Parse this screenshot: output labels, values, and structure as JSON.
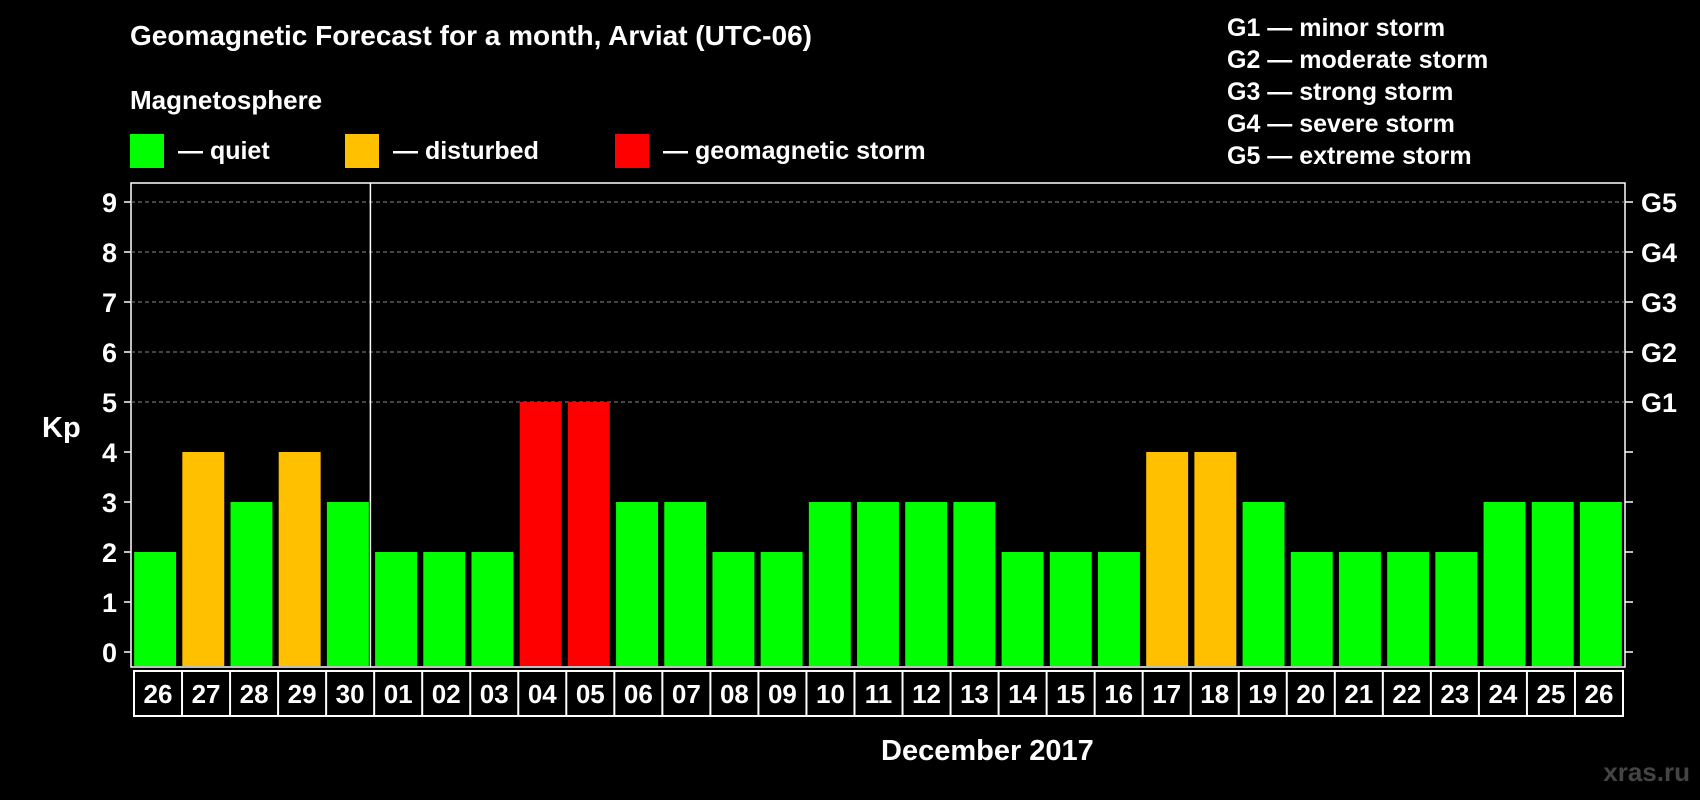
{
  "chart_data": {
    "type": "bar",
    "title": "Geomagnetic Forecast for a month, Arviat (UTC-06)",
    "ylabel": "Kp",
    "xlabel": "December 2017",
    "ylim": [
      0,
      9
    ],
    "yticks": [
      "0",
      "1",
      "2",
      "3",
      "4",
      "5",
      "6",
      "7",
      "8",
      "9"
    ],
    "right_axis_labels": [
      {
        "kp": 5,
        "label": "G1"
      },
      {
        "kp": 6,
        "label": "G2"
      },
      {
        "kp": 7,
        "label": "G3"
      },
      {
        "kp": 8,
        "label": "G4"
      },
      {
        "kp": 9,
        "label": "G5"
      }
    ],
    "categories": [
      "26",
      "27",
      "28",
      "29",
      "30",
      "01",
      "02",
      "03",
      "04",
      "05",
      "06",
      "07",
      "08",
      "09",
      "10",
      "11",
      "12",
      "13",
      "14",
      "15",
      "16",
      "17",
      "18",
      "19",
      "20",
      "21",
      "22",
      "23",
      "24",
      "25",
      "26"
    ],
    "values": [
      2,
      4,
      3,
      4,
      3,
      2,
      2,
      2,
      5,
      5,
      3,
      3,
      2,
      2,
      3,
      3,
      3,
      3,
      2,
      2,
      2,
      4,
      4,
      3,
      2,
      2,
      2,
      2,
      3,
      3,
      3
    ],
    "month_divider_after_index": 4,
    "grid": "dashed horizontal at Kp 5-9",
    "colors": {
      "quiet": "#00ff00",
      "disturbed": "#ffc000",
      "storm": "#ff0000"
    }
  },
  "legend": {
    "heading": "Magnetosphere",
    "items": [
      {
        "label": "— quiet",
        "color": "#00ff00"
      },
      {
        "label": "— disturbed",
        "color": "#ffc000"
      },
      {
        "label": "— geomagnetic storm",
        "color": "#ff0000"
      }
    ]
  },
  "storm_scale": [
    "G1 — minor storm",
    "G2 — moderate storm",
    "G3 — strong storm",
    "G4 — severe storm",
    "G5 — extreme storm"
  ],
  "watermark": "xras.ru"
}
